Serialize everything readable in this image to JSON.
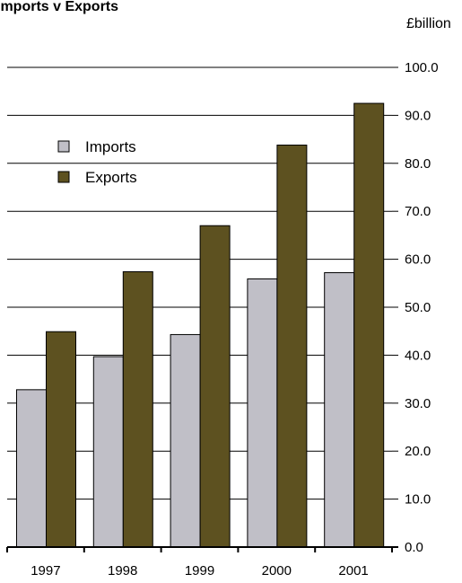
{
  "chart_data": {
    "type": "bar",
    "title": "Imports v Exports",
    "unit_label": "£billion",
    "categories": [
      "1997",
      "1998",
      "1999",
      "2000",
      "2001"
    ],
    "series": [
      {
        "name": "Imports",
        "values": [
          32.8,
          39.7,
          44.3,
          55.9,
          57.2
        ],
        "color": "#c0bfc7"
      },
      {
        "name": "Exports",
        "values": [
          44.9,
          57.4,
          67.0,
          83.8,
          92.5
        ],
        "color": "#5d5120"
      }
    ],
    "ylim": [
      0,
      100
    ],
    "y_ticks": [
      "0.0",
      "10.0",
      "20.0",
      "30.0",
      "40.0",
      "50.0",
      "60.0",
      "70.0",
      "80.0",
      "90.0",
      "100.0"
    ],
    "y_axis_side": "right",
    "grid": true,
    "legend_position": "top-left"
  }
}
